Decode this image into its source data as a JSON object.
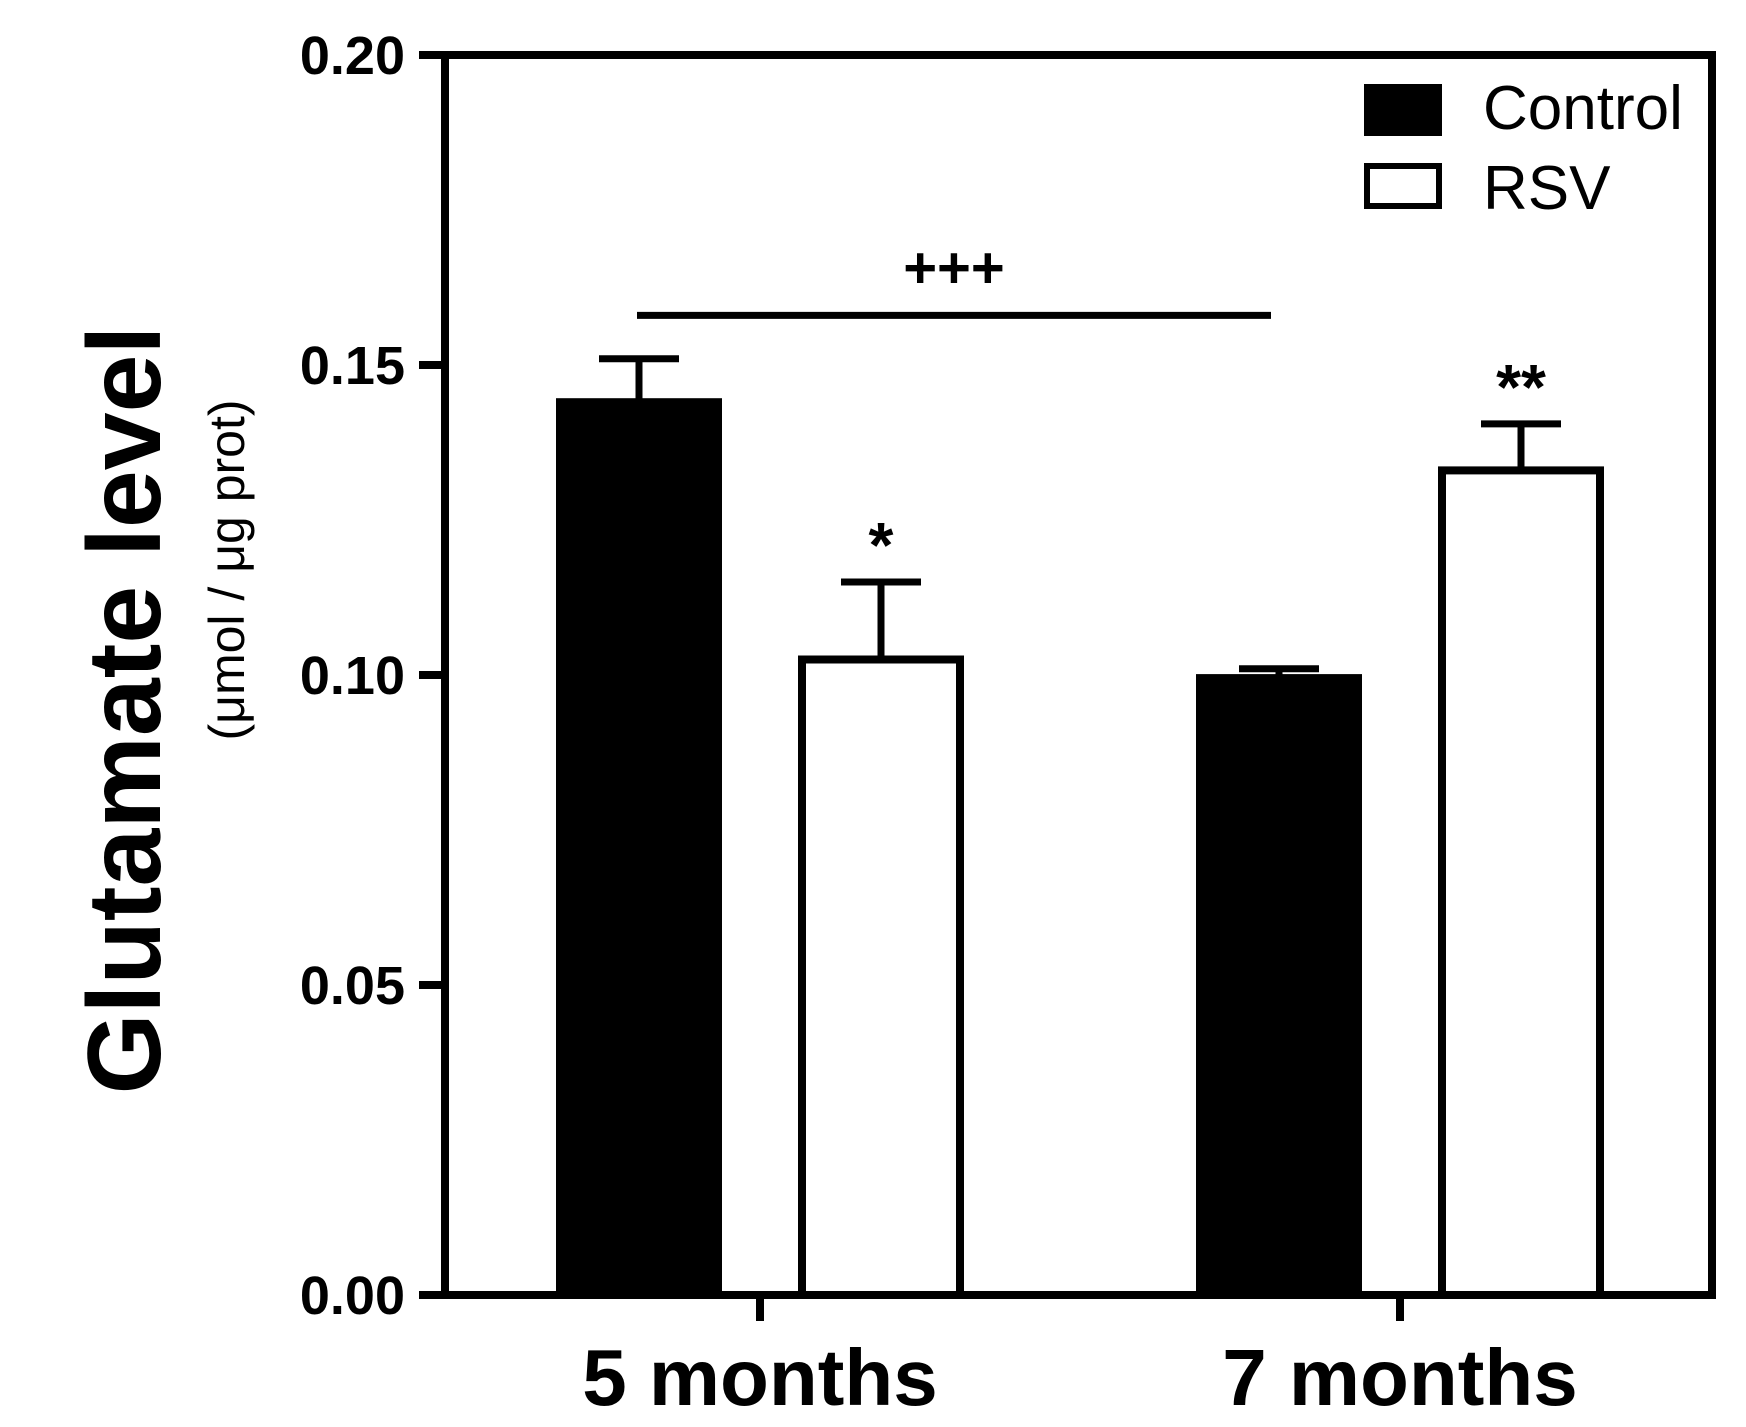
{
  "chart_data": {
    "type": "bar",
    "categories": [
      "5 months",
      "7 months"
    ],
    "series": [
      {
        "name": "Control",
        "color": "#000000",
        "values": [
          0.144,
          0.0995
        ],
        "errors": [
          0.007,
          0.0015
        ]
      },
      {
        "name": "RSV",
        "color": "#ffffff",
        "values": [
          0.1025,
          0.133
        ],
        "errors": [
          0.0125,
          0.0075
        ]
      }
    ],
    "ylabel": "Glutamate level",
    "ylabel_units": "(μmol / μg prot)",
    "ylim": [
      0,
      0.2
    ],
    "yticks": [
      "0.00",
      "0.05",
      "0.10",
      "0.15",
      "0.20"
    ],
    "ytick_values": [
      0,
      0.05,
      0.1,
      0.15,
      0.2
    ],
    "legend_position": "top-right",
    "annotations": {
      "rsv_5": "*",
      "rsv_7": "**",
      "bracket": "+++"
    },
    "bracket_y": 0.158
  }
}
